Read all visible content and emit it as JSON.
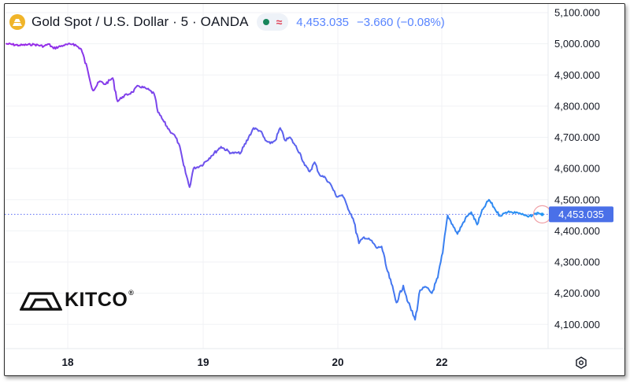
{
  "header": {
    "title": "Gold Spot / U.S. Dollar · 5 · OANDA",
    "last_price": "4,453.035",
    "change": "−3.660 (−0.08%)"
  },
  "price_label": "4,453.035",
  "logo": {
    "text": "KITCO",
    "registered": "®"
  },
  "colors": {
    "line_start": "#9c27e8",
    "line_end": "#2196f3",
    "price_line": "#5b6ef5",
    "label_bg": "#4a70e8"
  },
  "chart_data": {
    "type": "line",
    "title": "Gold Spot / U.S. Dollar · 5 · OANDA",
    "xlabel": "",
    "ylabel": "",
    "x_tick_labels": [
      "18",
      "19",
      "20",
      "22"
    ],
    "y_tick_labels": [
      "5,100.000",
      "5,000.000",
      "4,900.000",
      "4,800.000",
      "4,700.000",
      "4,600.000",
      "4,500.000",
      "4,400.000",
      "4,300.000",
      "4,200.000",
      "4,100.000"
    ],
    "y_ticks": [
      5100,
      5000,
      4900,
      4800,
      4700,
      4600,
      4500,
      4400,
      4300,
      4200,
      4100
    ],
    "ylim": [
      4030,
      5130
    ],
    "xlim": [
      17.52,
      22.98
    ],
    "grid": true,
    "last_price": 4453.035,
    "series": [
      {
        "x": [
          17.52,
          17.65,
          17.8,
          17.9,
          17.95,
          18.0,
          18.1,
          18.2,
          18.28,
          18.35,
          18.4,
          18.47,
          18.52,
          18.6,
          18.65,
          18.7,
          18.8,
          18.86,
          18.95,
          19.02,
          19.06,
          19.12,
          19.18,
          19.22,
          19.27,
          19.32,
          19.38,
          19.42,
          19.5,
          19.6,
          19.7,
          19.8,
          19.9,
          19.98,
          20.03,
          20.1,
          20.15,
          20.2,
          20.25,
          20.3,
          20.35,
          20.4,
          20.44,
          20.5,
          20.55,
          20.6,
          20.65,
          20.7,
          20.76,
          20.82,
          20.87,
          20.93,
          20.98,
          21.04,
          21.1,
          21.15,
          21.22,
          21.28,
          21.33,
          21.38,
          21.43,
          21.48,
          21.55,
          21.6,
          21.67,
          21.72,
          21.78,
          21.84,
          21.9,
          21.95,
          22.0,
          22.05,
          22.1,
          22.18,
          22.24,
          22.3,
          22.36,
          22.42,
          22.48,
          22.53,
          22.58,
          22.62,
          22.66,
          22.7,
          22.74,
          22.78,
          22.82,
          22.87,
          22.92,
          22.96
        ],
        "y": [
          5000,
          4995,
          4998,
          4992,
          4999,
          4985,
          4995,
          5000,
          4983,
          4910,
          4850,
          4880,
          4870,
          4890,
          4815,
          4830,
          4845,
          4865,
          4855,
          4840,
          4780,
          4750,
          4720,
          4710,
          4680,
          4610,
          4540,
          4600,
          4610,
          4640,
          4670,
          4650,
          4650,
          4700,
          4730,
          4720,
          4690,
          4680,
          4690,
          4730,
          4690,
          4700,
          4680,
          4650,
          4610,
          4590,
          4620,
          4580,
          4570,
          4545,
          4510,
          4515,
          4480,
          4440,
          4360,
          4380,
          4370,
          4345,
          4350,
          4280,
          4230,
          4170,
          4225,
          4170,
          4115,
          4210,
          4220,
          4200,
          4250,
          4330,
          4450,
          4420,
          4390,
          4440,
          4460,
          4420,
          4470,
          4500,
          4470,
          4448,
          4457,
          4463,
          4458,
          4460,
          4455,
          4450,
          4445,
          4452,
          4458,
          4453
        ]
      }
    ]
  }
}
